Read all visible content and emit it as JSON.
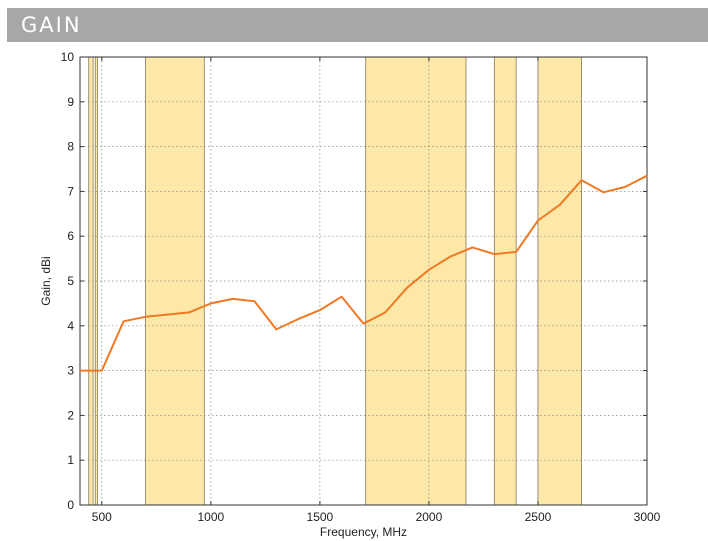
{
  "header": {
    "title": "GAIN"
  },
  "colors": {
    "header_bg": "#a7a7a7",
    "band_fill": "#fde8a8",
    "band_stroke": "#8a7a5a",
    "line": "#f07a24",
    "grid": "#888888"
  },
  "chart_data": {
    "type": "line",
    "title": "",
    "xlabel": "Frequency, MHz",
    "ylabel": "Gain, dBi",
    "xlim": [
      400,
      3000
    ],
    "ylim": [
      0,
      10
    ],
    "x_ticks": [
      500,
      1000,
      1500,
      2000,
      2500,
      3000
    ],
    "y_ticks": [
      0,
      1,
      2,
      3,
      4,
      5,
      6,
      7,
      8,
      9,
      10
    ],
    "grid": true,
    "legend": "none",
    "bands": [
      {
        "x0": 440,
        "x1": 460
      },
      {
        "x0": 470,
        "x1": 480
      },
      {
        "x0": 700,
        "x1": 970
      },
      {
        "x0": 1710,
        "x1": 2170
      },
      {
        "x0": 2300,
        "x1": 2400
      },
      {
        "x0": 2500,
        "x1": 2700
      }
    ],
    "series": [
      {
        "x": [
          400,
          500,
          600,
          700,
          800,
          900,
          1000,
          1100,
          1200,
          1300,
          1400,
          1500,
          1600,
          1700,
          1800,
          1900,
          2000,
          2100,
          2200,
          2300,
          2400,
          2500,
          2600,
          2700,
          2800,
          2900,
          3000
        ],
        "y": [
          3.0,
          3.0,
          4.1,
          4.2,
          4.25,
          4.3,
          4.5,
          4.6,
          4.55,
          3.92,
          4.15,
          4.35,
          4.65,
          4.05,
          4.3,
          4.85,
          5.25,
          5.55,
          5.75,
          5.6,
          5.65,
          6.35,
          6.7,
          7.25,
          6.98,
          7.1,
          7.35
        ]
      }
    ]
  }
}
